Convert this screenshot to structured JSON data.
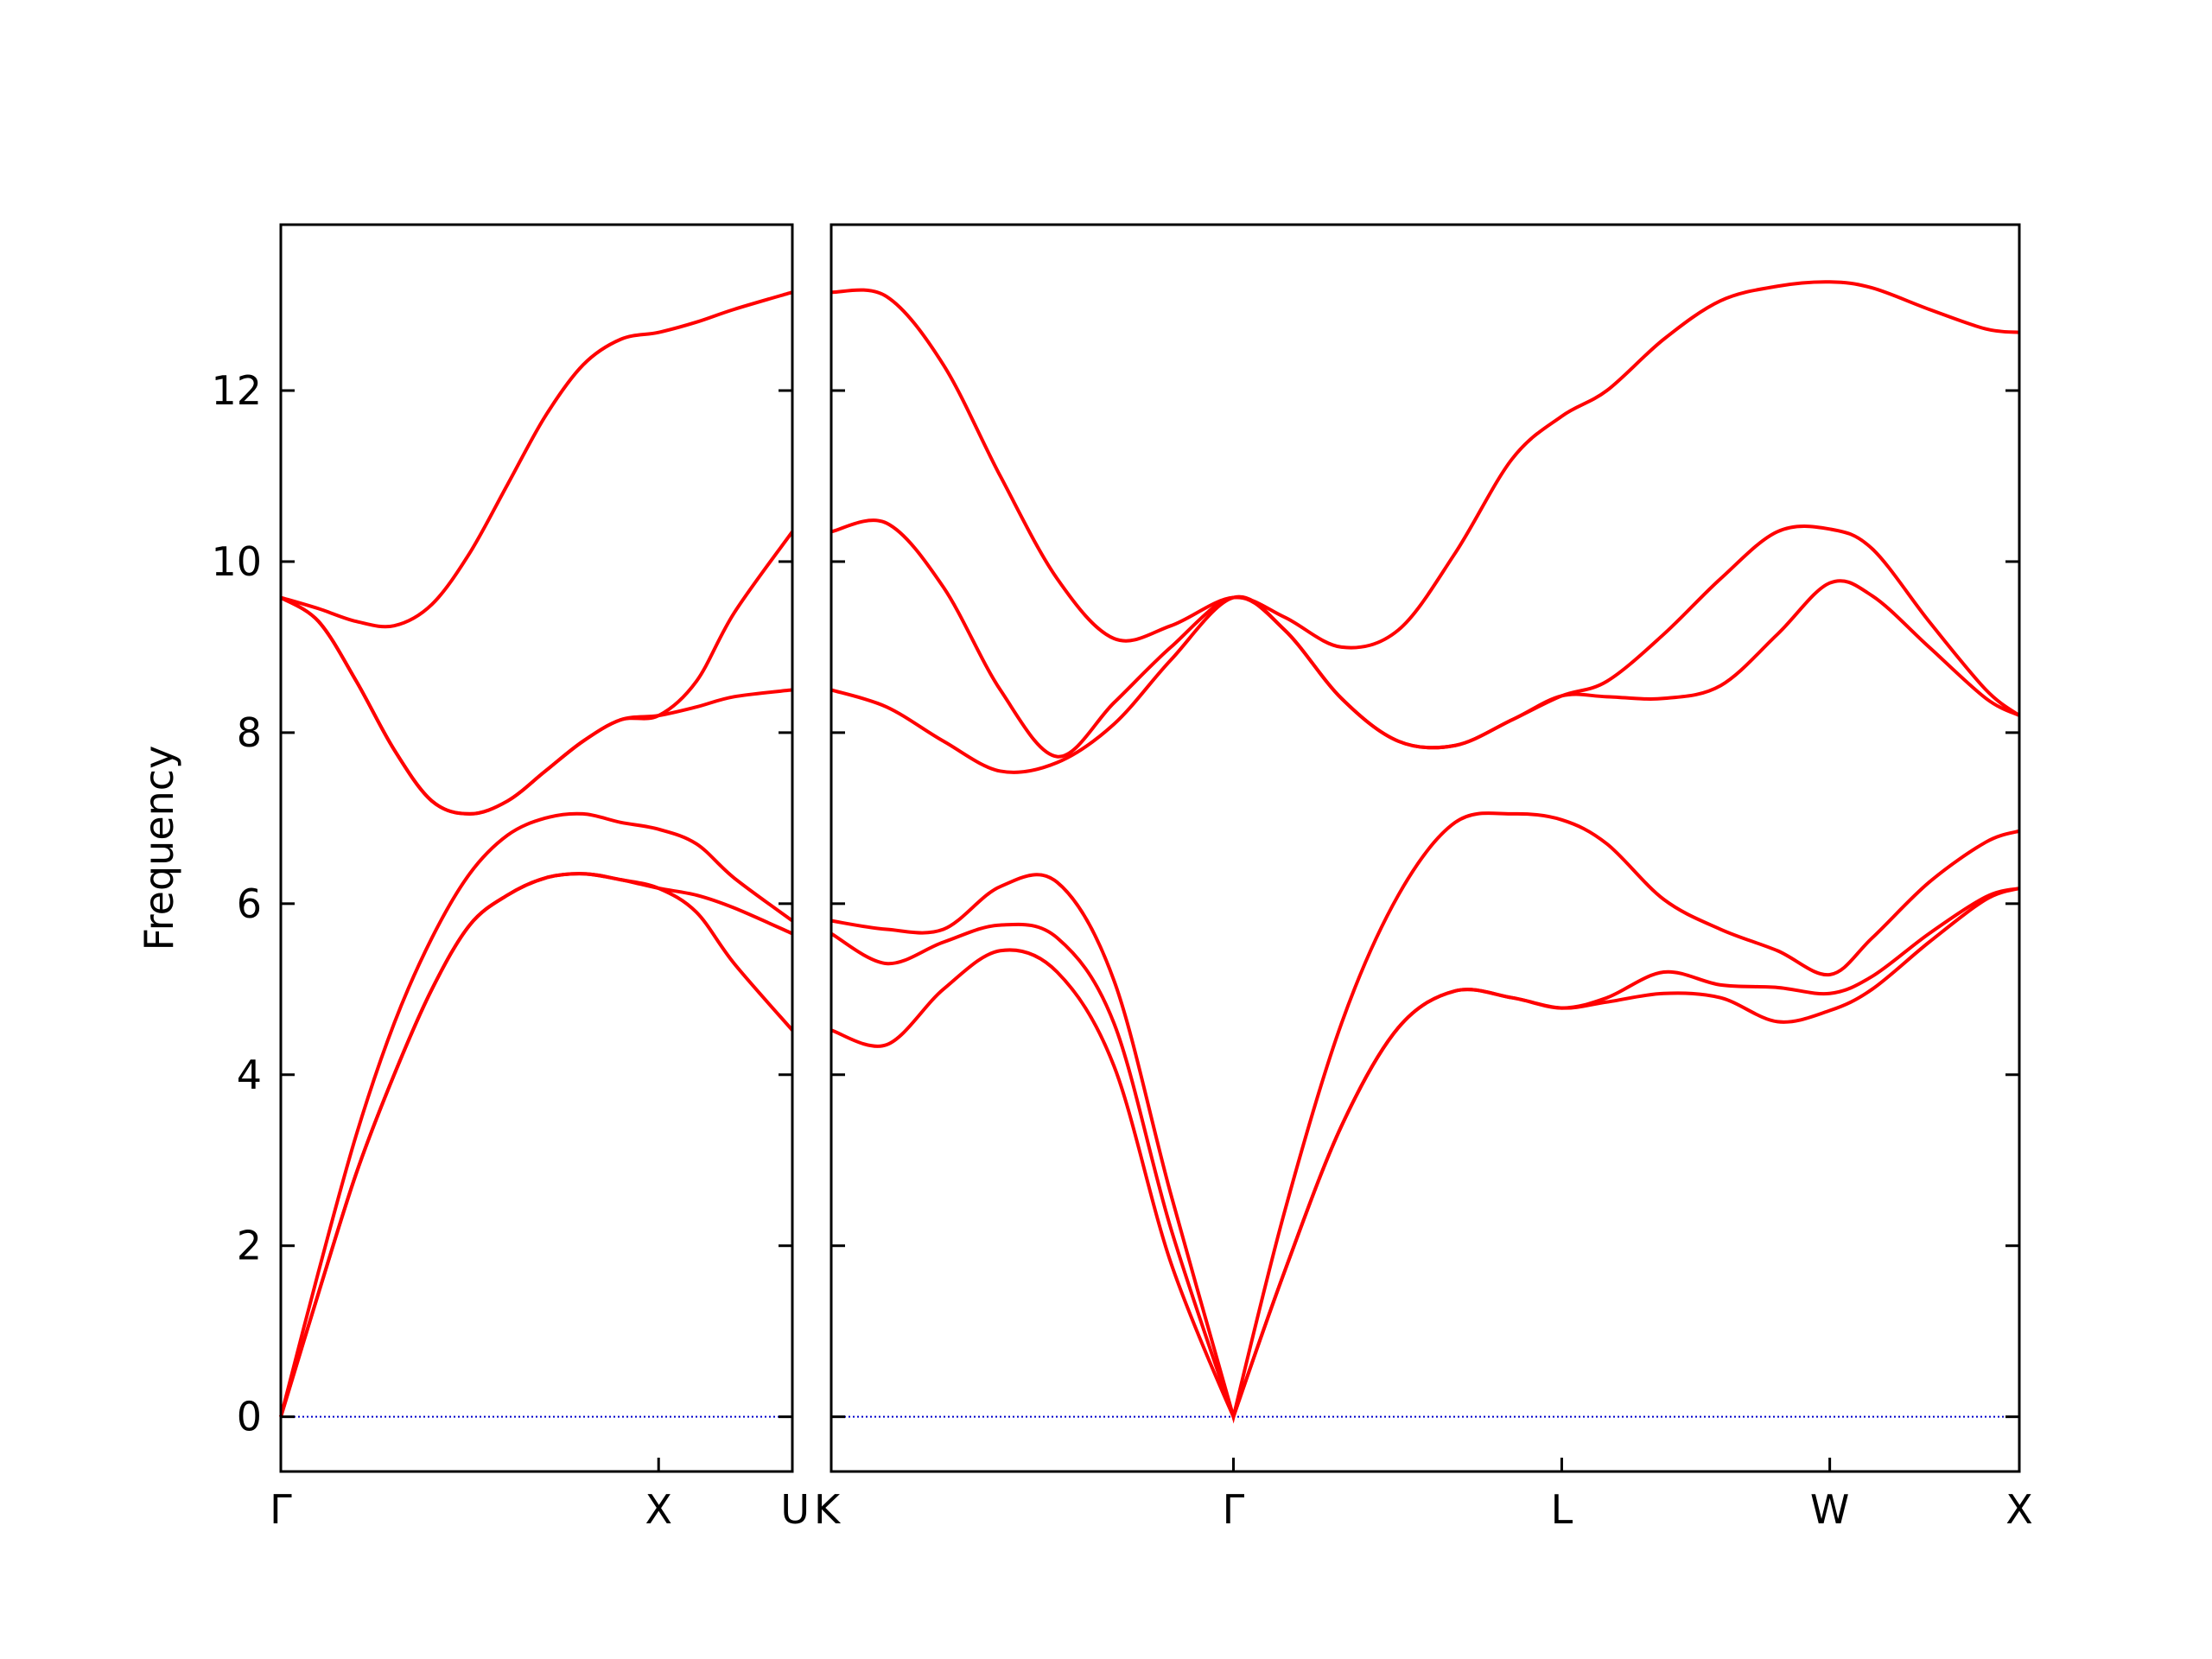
{
  "chart_data": [
    {
      "type": "line",
      "y_label": "Frequency",
      "color": "#ff0000",
      "zero_line_color": "#0000cc",
      "ytick_labels": true,
      "xlim": [
        0,
        1.354
      ],
      "ylim": [
        -0.64,
        13.94
      ],
      "xticks": [
        {
          "value": 0,
          "label": "Γ"
        },
        {
          "value": 1,
          "label": "X"
        },
        {
          "value": 1.354,
          "label": "U"
        }
      ],
      "yticks": [
        0,
        2,
        4,
        6,
        8,
        10,
        12
      ],
      "x": [
        0,
        0.1,
        0.2,
        0.3,
        0.4,
        0.5,
        0.6,
        0.7,
        0.8,
        0.9,
        1.0,
        1.1,
        1.2,
        1.354
      ],
      "series": [
        {
          "values": [
            0,
            1.45,
            2.85,
            4.0,
            5.0,
            5.75,
            6.1,
            6.3,
            6.35,
            6.28,
            6.18,
            5.9,
            5.3,
            4.52
          ]
        },
        {
          "values": [
            0,
            1.45,
            2.85,
            4.0,
            5.0,
            5.75,
            6.1,
            6.3,
            6.35,
            6.28,
            6.18,
            6.1,
            5.95,
            5.65
          ]
        },
        {
          "values": [
            0,
            1.7,
            3.3,
            4.6,
            5.6,
            6.35,
            6.8,
            7.0,
            7.05,
            6.95,
            6.87,
            6.7,
            6.3,
            5.8
          ]
        },
        {
          "values": [
            9.58,
            9.3,
            8.6,
            7.8,
            7.2,
            7.05,
            7.2,
            7.55,
            7.9,
            8.15,
            8.2,
            8.3,
            8.42,
            8.5
          ]
        },
        {
          "values": [
            9.58,
            9.3,
            8.6,
            7.8,
            7.2,
            7.05,
            7.2,
            7.55,
            7.9,
            8.15,
            8.2,
            8.6,
            9.4,
            10.35
          ]
        },
        {
          "values": [
            9.58,
            9.45,
            9.3,
            9.25,
            9.5,
            10.1,
            10.9,
            11.7,
            12.3,
            12.6,
            12.68,
            12.8,
            12.95,
            13.15
          ]
        }
      ]
    },
    {
      "type": "line",
      "color": "#ff0000",
      "zero_line_color": "#0000cc",
      "ytick_labels": false,
      "xlim": [
        1.354,
        4.488
      ],
      "ylim": [
        -0.64,
        13.94
      ],
      "xticks": [
        {
          "value": 1.354,
          "label": "K"
        },
        {
          "value": 2.415,
          "label": "Γ"
        },
        {
          "value": 3.281,
          "label": "L"
        },
        {
          "value": 3.988,
          "label": "W"
        },
        {
          "value": 4.488,
          "label": "X"
        }
      ],
      "yticks": [
        0,
        2,
        4,
        6,
        8,
        10,
        12
      ],
      "x": [
        1.354,
        1.5,
        1.65,
        1.8,
        1.95,
        2.1,
        2.25,
        2.415,
        2.55,
        2.7,
        2.85,
        3.0,
        3.15,
        3.281,
        3.4,
        3.55,
        3.7,
        3.85,
        3.988,
        4.1,
        4.25,
        4.4,
        4.488
      ],
      "series": [
        {
          "values": [
            4.52,
            4.35,
            5.0,
            5.45,
            5.2,
            4.1,
            1.8,
            0,
            1.7,
            3.4,
            4.55,
            4.98,
            4.9,
            4.78,
            4.85,
            4.95,
            4.9,
            4.62,
            4.75,
            5.0,
            5.55,
            6.05,
            6.18
          ]
        },
        {
          "values": [
            5.65,
            5.3,
            5.55,
            5.75,
            5.6,
            4.6,
            2.2,
            0,
            1.7,
            3.4,
            4.55,
            4.98,
            4.9,
            4.78,
            4.9,
            5.2,
            5.05,
            5.02,
            4.95,
            5.15,
            5.65,
            6.08,
            6.18
          ]
        },
        {
          "values": [
            5.8,
            5.7,
            5.7,
            6.2,
            6.25,
            5.1,
            2.6,
            0,
            2.4,
            4.6,
            6.1,
            6.95,
            7.05,
            6.98,
            6.7,
            6.05,
            5.7,
            5.45,
            5.17,
            5.6,
            6.25,
            6.72,
            6.85
          ]
        },
        {
          "values": [
            8.5,
            8.3,
            7.9,
            7.55,
            7.65,
            8.1,
            8.85,
            9.58,
            9.2,
            8.4,
            7.9,
            7.85,
            8.15,
            8.43,
            8.42,
            8.4,
            8.55,
            9.15,
            9.75,
            9.6,
            9.0,
            8.4,
            8.2
          ]
        },
        {
          "values": [
            10.35,
            10.45,
            9.7,
            8.5,
            7.72,
            8.35,
            9.0,
            9.58,
            9.2,
            8.4,
            7.9,
            7.85,
            8.15,
            8.43,
            8.6,
            9.15,
            9.8,
            10.35,
            10.38,
            10.15,
            9.3,
            8.5,
            8.2
          ]
        },
        {
          "values": [
            13.15,
            13.1,
            12.3,
            11.0,
            9.8,
            9.1,
            9.25,
            9.58,
            9.35,
            9.0,
            9.2,
            10.1,
            11.2,
            11.7,
            12.0,
            12.6,
            13.05,
            13.22,
            13.27,
            13.2,
            12.95,
            12.72,
            12.68
          ]
        }
      ]
    }
  ]
}
